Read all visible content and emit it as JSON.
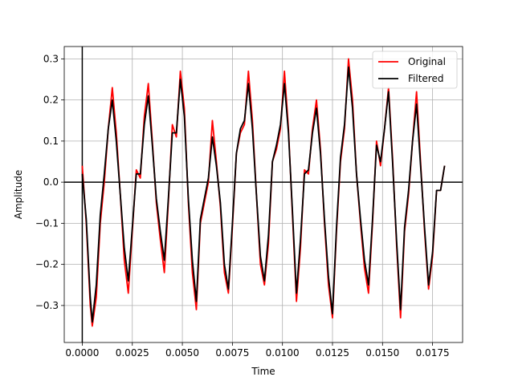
{
  "chart_data": {
    "type": "line",
    "title": "",
    "xlabel": "Time",
    "ylabel": "Amplitude",
    "xlim": [
      -0.0009,
      0.019
    ],
    "ylim": [
      -0.39,
      0.33
    ],
    "xticks": [
      0.0,
      0.0025,
      0.005,
      0.0075,
      0.01,
      0.0125,
      0.015,
      0.0175
    ],
    "xtick_labels": [
      "0.0000",
      "0.0025",
      "0.0050",
      "0.0075",
      "0.0100",
      "0.0125",
      "0.0150",
      "0.0175"
    ],
    "yticks": [
      -0.3,
      -0.2,
      -0.1,
      0.0,
      0.1,
      0.2,
      0.3
    ],
    "ytick_labels": [
      "−0.3",
      "−0.2",
      "−0.1",
      "0.0",
      "0.1",
      "0.2",
      "0.3"
    ],
    "grid": true,
    "legend": "top-right",
    "reference_lines": {
      "x": 0,
      "y": 0
    },
    "series": [
      {
        "name": "Original",
        "color": "#ff0000",
        "points": [
          [
            0.0,
            0.04
          ],
          [
            0.0002,
            -0.1
          ],
          [
            0.0004,
            -0.3
          ],
          [
            0.0005,
            -0.35
          ],
          [
            0.0007,
            -0.28
          ],
          [
            0.0009,
            -0.1
          ],
          [
            0.0011,
            0.0
          ],
          [
            0.0013,
            0.13
          ],
          [
            0.0015,
            0.23
          ],
          [
            0.0017,
            0.12
          ],
          [
            0.0019,
            -0.03
          ],
          [
            0.0021,
            -0.19
          ],
          [
            0.0023,
            -0.27
          ],
          [
            0.0025,
            -0.12
          ],
          [
            0.0027,
            0.03
          ],
          [
            0.0029,
            0.01
          ],
          [
            0.0031,
            0.16
          ],
          [
            0.0033,
            0.24
          ],
          [
            0.0035,
            0.1
          ],
          [
            0.0037,
            -0.05
          ],
          [
            0.0039,
            -0.14
          ],
          [
            0.0041,
            -0.22
          ],
          [
            0.0043,
            -0.05
          ],
          [
            0.0045,
            0.14
          ],
          [
            0.0047,
            0.11
          ],
          [
            0.0049,
            0.27
          ],
          [
            0.0051,
            0.18
          ],
          [
            0.0053,
            -0.05
          ],
          [
            0.0055,
            -0.22
          ],
          [
            0.0057,
            -0.31
          ],
          [
            0.0059,
            -0.1
          ],
          [
            0.0061,
            -0.05
          ],
          [
            0.0063,
            0.0
          ],
          [
            0.0065,
            0.15
          ],
          [
            0.0067,
            0.05
          ],
          [
            0.0069,
            -0.06
          ],
          [
            0.0071,
            -0.22
          ],
          [
            0.0073,
            -0.27
          ],
          [
            0.0075,
            -0.11
          ],
          [
            0.0077,
            0.07
          ],
          [
            0.0079,
            0.12
          ],
          [
            0.0081,
            0.14
          ],
          [
            0.0083,
            0.27
          ],
          [
            0.0085,
            0.15
          ],
          [
            0.0087,
            -0.03
          ],
          [
            0.0089,
            -0.2
          ],
          [
            0.0091,
            -0.25
          ],
          [
            0.0093,
            -0.15
          ],
          [
            0.0095,
            0.05
          ],
          [
            0.0097,
            0.08
          ],
          [
            0.0099,
            0.13
          ],
          [
            0.0101,
            0.27
          ],
          [
            0.0103,
            0.13
          ],
          [
            0.0105,
            -0.08
          ],
          [
            0.0107,
            -0.29
          ],
          [
            0.0109,
            -0.16
          ],
          [
            0.0111,
            0.03
          ],
          [
            0.0113,
            0.02
          ],
          [
            0.0115,
            0.13
          ],
          [
            0.0117,
            0.2
          ],
          [
            0.0119,
            0.08
          ],
          [
            0.0121,
            -0.1
          ],
          [
            0.0123,
            -0.25
          ],
          [
            0.0125,
            -0.33
          ],
          [
            0.0127,
            -0.12
          ],
          [
            0.0129,
            0.05
          ],
          [
            0.0131,
            0.13
          ],
          [
            0.0133,
            0.3
          ],
          [
            0.0135,
            0.2
          ],
          [
            0.0137,
            0.02
          ],
          [
            0.0139,
            -0.1
          ],
          [
            0.0141,
            -0.21
          ],
          [
            0.0143,
            -0.27
          ],
          [
            0.0145,
            -0.1
          ],
          [
            0.0147,
            0.1
          ],
          [
            0.0149,
            0.04
          ],
          [
            0.0151,
            0.13
          ],
          [
            0.0153,
            0.23
          ],
          [
            0.0155,
            0.06
          ],
          [
            0.0157,
            -0.15
          ],
          [
            0.0159,
            -0.33
          ],
          [
            0.0161,
            -0.12
          ],
          [
            0.0163,
            -0.03
          ],
          [
            0.0165,
            0.1
          ],
          [
            0.0167,
            0.22
          ],
          [
            0.0169,
            0.05
          ],
          [
            0.0171,
            -0.12
          ],
          [
            0.0173,
            -0.26
          ],
          [
            0.0175,
            -0.18
          ],
          [
            0.0177,
            -0.02
          ],
          [
            0.0179,
            -0.02
          ],
          [
            0.0181,
            0.04
          ]
        ]
      },
      {
        "name": "Filtered",
        "color": "#000000",
        "points": [
          [
            0.0,
            0.02
          ],
          [
            0.0002,
            -0.09
          ],
          [
            0.0004,
            -0.28
          ],
          [
            0.0005,
            -0.34
          ],
          [
            0.0007,
            -0.25
          ],
          [
            0.0009,
            -0.08
          ],
          [
            0.0011,
            0.02
          ],
          [
            0.0013,
            0.13
          ],
          [
            0.0015,
            0.2
          ],
          [
            0.0017,
            0.1
          ],
          [
            0.0019,
            -0.03
          ],
          [
            0.0021,
            -0.16
          ],
          [
            0.0023,
            -0.24
          ],
          [
            0.0025,
            -0.11
          ],
          [
            0.0027,
            0.02
          ],
          [
            0.0029,
            0.02
          ],
          [
            0.0031,
            0.14
          ],
          [
            0.0033,
            0.21
          ],
          [
            0.0035,
            0.09
          ],
          [
            0.0037,
            -0.04
          ],
          [
            0.0039,
            -0.12
          ],
          [
            0.0041,
            -0.19
          ],
          [
            0.0043,
            -0.04
          ],
          [
            0.0045,
            0.12
          ],
          [
            0.0047,
            0.12
          ],
          [
            0.0049,
            0.25
          ],
          [
            0.0051,
            0.16
          ],
          [
            0.0053,
            -0.04
          ],
          [
            0.0055,
            -0.19
          ],
          [
            0.0057,
            -0.29
          ],
          [
            0.0059,
            -0.09
          ],
          [
            0.0061,
            -0.04
          ],
          [
            0.0063,
            0.01
          ],
          [
            0.0065,
            0.11
          ],
          [
            0.0067,
            0.04
          ],
          [
            0.0069,
            -0.05
          ],
          [
            0.0071,
            -0.2
          ],
          [
            0.0073,
            -0.26
          ],
          [
            0.0075,
            -0.1
          ],
          [
            0.0077,
            0.07
          ],
          [
            0.0079,
            0.13
          ],
          [
            0.0081,
            0.15
          ],
          [
            0.0083,
            0.24
          ],
          [
            0.0085,
            0.13
          ],
          [
            0.0087,
            -0.03
          ],
          [
            0.0089,
            -0.18
          ],
          [
            0.0091,
            -0.24
          ],
          [
            0.0093,
            -0.13
          ],
          [
            0.0095,
            0.05
          ],
          [
            0.0097,
            0.09
          ],
          [
            0.0099,
            0.14
          ],
          [
            0.0101,
            0.24
          ],
          [
            0.0103,
            0.12
          ],
          [
            0.0105,
            -0.07
          ],
          [
            0.0107,
            -0.27
          ],
          [
            0.0109,
            -0.14
          ],
          [
            0.0111,
            0.02
          ],
          [
            0.0113,
            0.03
          ],
          [
            0.0115,
            0.12
          ],
          [
            0.0117,
            0.18
          ],
          [
            0.0119,
            0.07
          ],
          [
            0.0121,
            -0.09
          ],
          [
            0.0123,
            -0.23
          ],
          [
            0.0125,
            -0.32
          ],
          [
            0.0127,
            -0.11
          ],
          [
            0.0129,
            0.06
          ],
          [
            0.0131,
            0.14
          ],
          [
            0.0133,
            0.28
          ],
          [
            0.0135,
            0.18
          ],
          [
            0.0137,
            0.02
          ],
          [
            0.0139,
            -0.09
          ],
          [
            0.0141,
            -0.19
          ],
          [
            0.0143,
            -0.25
          ],
          [
            0.0145,
            -0.09
          ],
          [
            0.0147,
            0.09
          ],
          [
            0.0149,
            0.05
          ],
          [
            0.0151,
            0.13
          ],
          [
            0.0153,
            0.22
          ],
          [
            0.0155,
            0.05
          ],
          [
            0.0157,
            -0.14
          ],
          [
            0.0159,
            -0.31
          ],
          [
            0.0161,
            -0.11
          ],
          [
            0.0163,
            -0.02
          ],
          [
            0.0165,
            0.1
          ],
          [
            0.0167,
            0.19
          ],
          [
            0.0169,
            0.04
          ],
          [
            0.0171,
            -0.11
          ],
          [
            0.0173,
            -0.25
          ],
          [
            0.0175,
            -0.17
          ],
          [
            0.0177,
            -0.02
          ],
          [
            0.0179,
            -0.02
          ],
          [
            0.0181,
            0.04
          ]
        ]
      }
    ]
  }
}
